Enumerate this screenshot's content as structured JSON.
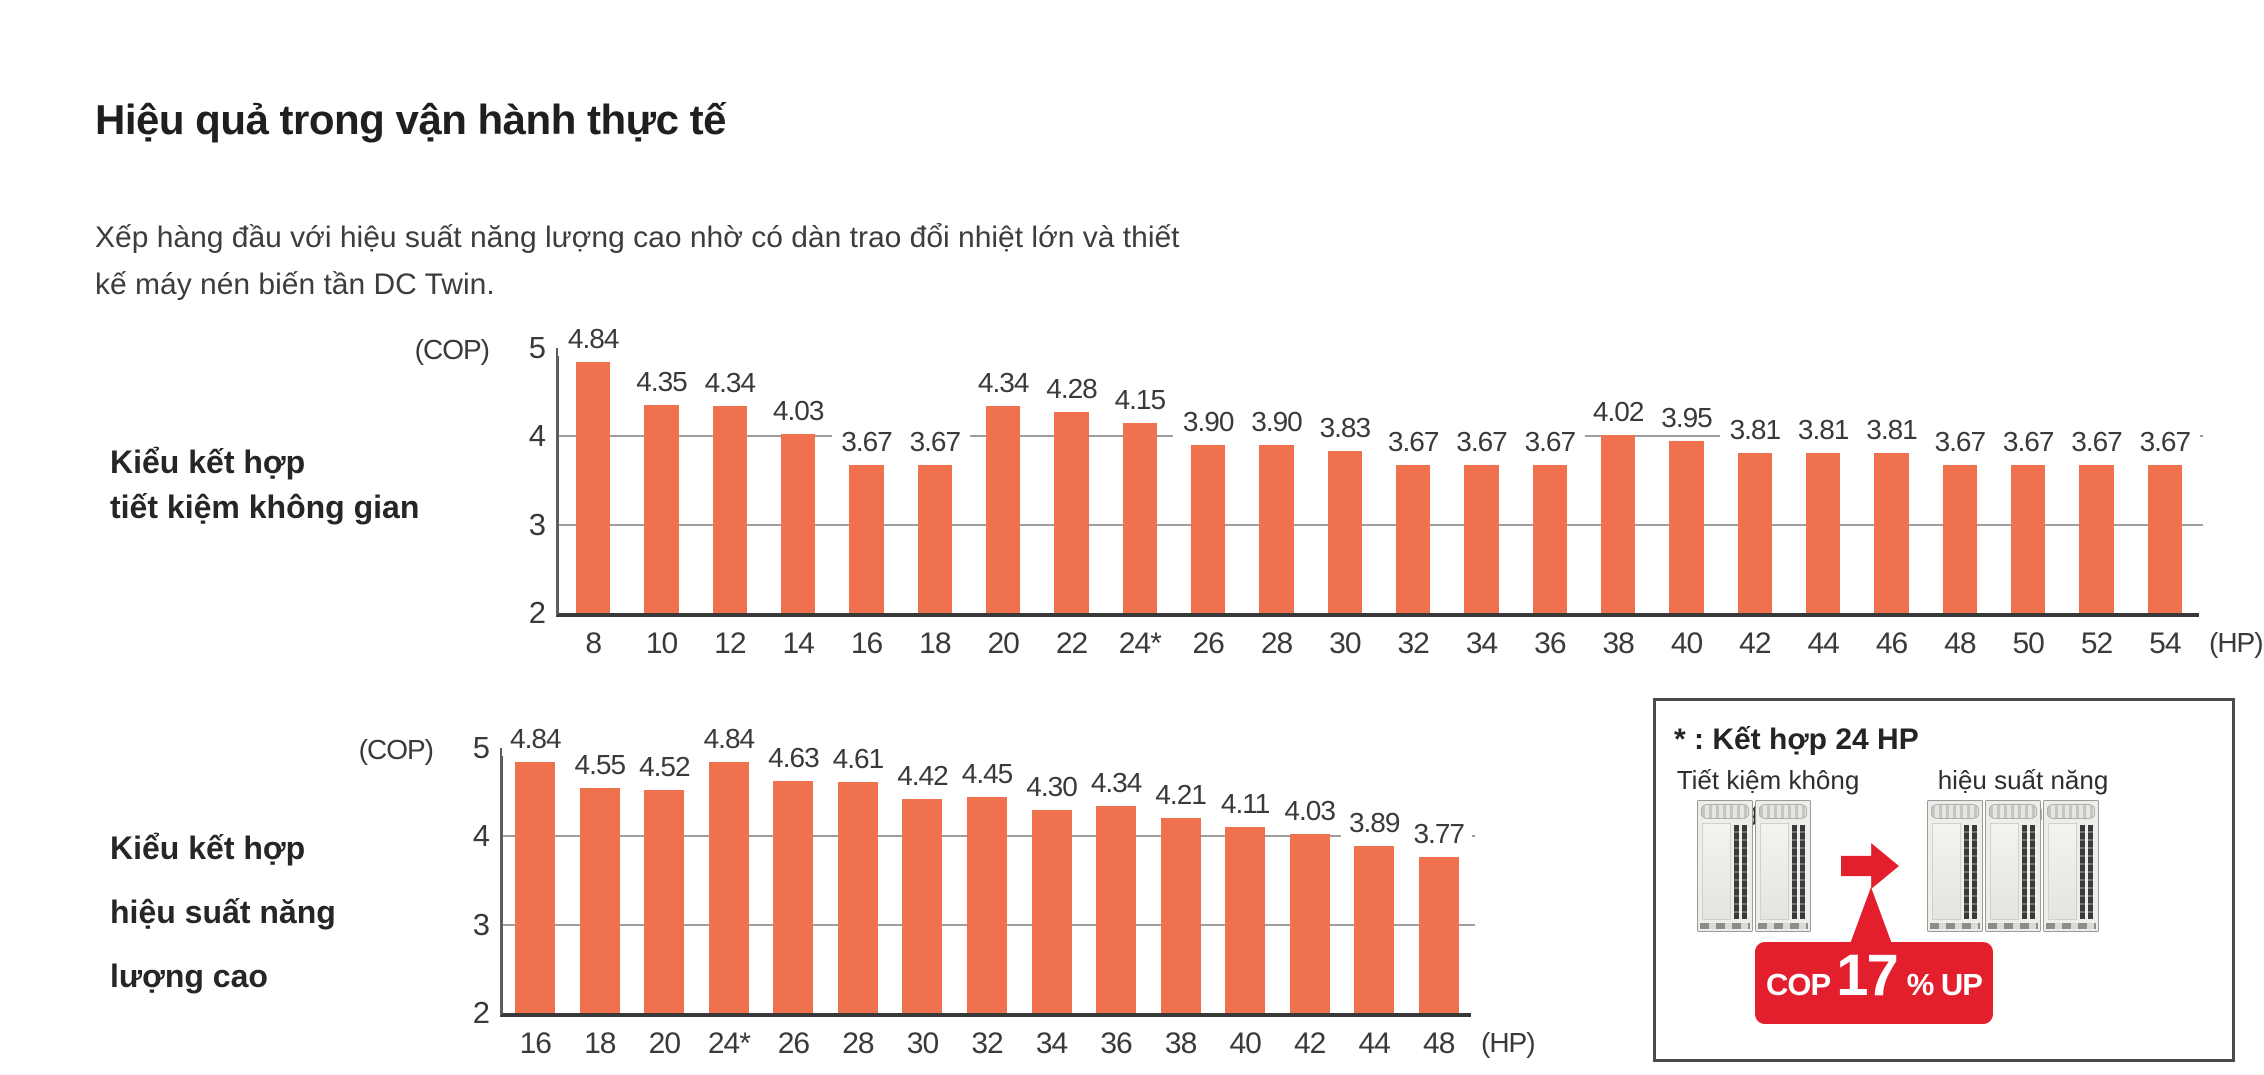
{
  "colors": {
    "bar": "#F0714E",
    "red": "#E31E2D",
    "grid": "#9E9E9E",
    "axis": "#383838"
  },
  "header": {
    "title": "Hiệu quả trong vận hành thực tế",
    "subtitle_lines": [
      "Xếp hàng đầu với hiệu suất năng lượng cao nhờ có dàn trao đổi nhiệt lớn và thiết",
      "kế máy nén biến tần DC Twin."
    ]
  },
  "chart_data": [
    {
      "type": "bar",
      "title": "Kiểu kết hợp tiết kiệm không gian",
      "row_label_lines": [
        "Kiểu kết hợp",
        "tiết kiệm không gian"
      ],
      "ylabel": "(COP)",
      "xlabel": "(HP)",
      "ylim": [
        2,
        5
      ],
      "yticks": [
        5,
        4,
        3,
        2
      ],
      "grid": true,
      "bar_color": "#F0714E",
      "categories": [
        "8",
        "10",
        "12",
        "14",
        "16",
        "18",
        "20",
        "22",
        "24*",
        "26",
        "28",
        "30",
        "32",
        "34",
        "36",
        "38",
        "40",
        "42",
        "44",
        "46",
        "48",
        "50",
        "52",
        "54"
      ],
      "values": [
        4.84,
        4.35,
        4.34,
        4.03,
        3.67,
        3.67,
        4.34,
        4.28,
        4.15,
        3.9,
        3.9,
        3.83,
        3.67,
        3.67,
        3.67,
        4.02,
        3.95,
        3.81,
        3.81,
        3.81,
        3.67,
        3.67,
        3.67,
        3.67
      ]
    },
    {
      "type": "bar",
      "title": "Kiểu kết hợp hiệu suất năng lượng cao",
      "row_label_lines": [
        "Kiểu kết hợp",
        "hiệu suất năng",
        "lượng cao"
      ],
      "ylabel": "(COP)",
      "xlabel": "(HP)",
      "ylim": [
        2,
        5
      ],
      "yticks": [
        5,
        4,
        3,
        2
      ],
      "grid": true,
      "bar_color": "#F0714E",
      "categories": [
        "16",
        "18",
        "20",
        "24*",
        "26",
        "28",
        "30",
        "32",
        "34",
        "36",
        "38",
        "40",
        "42",
        "44",
        "48"
      ],
      "values": [
        4.84,
        4.55,
        4.52,
        4.84,
        4.63,
        4.61,
        4.42,
        4.45,
        4.3,
        4.34,
        4.21,
        4.11,
        4.03,
        3.89,
        3.77
      ]
    }
  ],
  "note_box": {
    "title": "* : Kết hợp 24 HP",
    "left_label": "Tiết kiệm không gian",
    "right_label": "hiệu suất năng lượng",
    "left_unit_count": 2,
    "right_unit_count": 3,
    "badge": {
      "prefix": "COP",
      "value": "17",
      "suffix": "% UP"
    }
  }
}
